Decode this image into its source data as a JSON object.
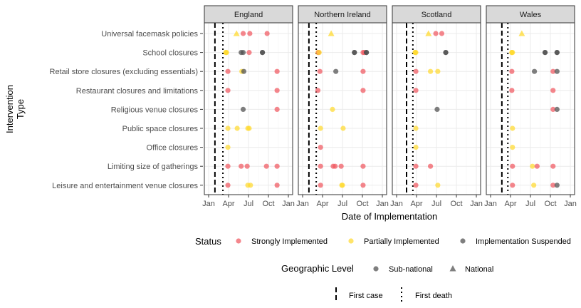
{
  "chart_data": {
    "type": "scatter",
    "xlabel": "Date of Implementation",
    "ylabel_lines": [
      "Intervention",
      "Type"
    ],
    "x_ticks": [
      "Jan",
      "Apr",
      "Jul",
      "Oct",
      "Jan"
    ],
    "xlim_months": [
      0,
      12
    ],
    "grid": true,
    "categories": [
      "Universal facemask policies",
      "School closures",
      "Retail store closures (excluding essentials)",
      "Restaurant closures and limitations",
      "Religious venue closures",
      "Public space closures",
      "Office closures",
      "Limiting size of gatherings",
      "Leisure and entertainment venue closures"
    ],
    "status_colors": {
      "Strongly Implemented": "#F0585F",
      "Partially Implemented": "#FFD92F",
      "Implementation Suspended": "#4D4D4D"
    },
    "legend": {
      "status_title": "Status",
      "status_items": [
        "Strongly Implemented",
        "Partially Implemented",
        "Implementation Suspended"
      ],
      "geo_title": "Geographic Level",
      "geo_items": [
        {
          "label": "Sub-national",
          "shape": "circle"
        },
        {
          "label": "National",
          "shape": "triangle"
        }
      ],
      "line_items": [
        {
          "label": "First case",
          "style": "dashed"
        },
        {
          "label": "First death",
          "style": "dotted"
        }
      ],
      "position": "bottom"
    },
    "panels": [
      {
        "name": "England",
        "first_case": 0.95,
        "first_death": 2.15,
        "points": [
          {
            "cat": 0,
            "x": 4.2,
            "status": "Partially Implemented",
            "geo": "National"
          },
          {
            "cat": 0,
            "x": 5.2,
            "status": "Strongly Implemented",
            "geo": "Sub-national"
          },
          {
            "cat": 0,
            "x": 6.2,
            "status": "Strongly Implemented",
            "geo": "Sub-national"
          },
          {
            "cat": 0,
            "x": 8.8,
            "status": "Strongly Implemented",
            "geo": "Sub-national"
          },
          {
            "cat": 1,
            "x": 2.6,
            "status": "Partially Implemented",
            "geo": "Sub-national"
          },
          {
            "cat": 1,
            "x": 2.6,
            "status": "Partially Implemented",
            "geo": "Sub-national"
          },
          {
            "cat": 1,
            "x": 2.7,
            "status": "Partially Implemented",
            "geo": "Sub-national"
          },
          {
            "cat": 1,
            "x": 4.9,
            "status": "Implementation Suspended",
            "geo": "Sub-national"
          },
          {
            "cat": 1,
            "x": 5.2,
            "status": "Implementation Suspended",
            "geo": "Sub-national"
          },
          {
            "cat": 1,
            "x": 6.1,
            "status": "Strongly Implemented",
            "geo": "Sub-national"
          },
          {
            "cat": 1,
            "x": 8.1,
            "status": "Implementation Suspended",
            "geo": "Sub-national"
          },
          {
            "cat": 1,
            "x": 8.1,
            "status": "Implementation Suspended",
            "geo": "Sub-national"
          },
          {
            "cat": 2,
            "x": 2.9,
            "status": "Strongly Implemented",
            "geo": "Sub-national"
          },
          {
            "cat": 2,
            "x": 5.0,
            "status": "Partially Implemented",
            "geo": "Sub-national"
          },
          {
            "cat": 2,
            "x": 5.3,
            "status": "Implementation Suspended",
            "geo": "Sub-national"
          },
          {
            "cat": 2,
            "x": 10.3,
            "status": "Strongly Implemented",
            "geo": "Sub-national"
          },
          {
            "cat": 3,
            "x": 2.9,
            "status": "Strongly Implemented",
            "geo": "Sub-national"
          },
          {
            "cat": 3,
            "x": 10.3,
            "status": "Strongly Implemented",
            "geo": "Sub-national"
          },
          {
            "cat": 4,
            "x": 5.2,
            "status": "Implementation Suspended",
            "geo": "Sub-national"
          },
          {
            "cat": 4,
            "x": 10.3,
            "status": "Strongly Implemented",
            "geo": "Sub-national"
          },
          {
            "cat": 5,
            "x": 2.9,
            "status": "Partially Implemented",
            "geo": "Sub-national"
          },
          {
            "cat": 5,
            "x": 4.3,
            "status": "Partially Implemented",
            "geo": "Sub-national"
          },
          {
            "cat": 5,
            "x": 5.9,
            "status": "Partially Implemented",
            "geo": "Sub-national"
          },
          {
            "cat": 5,
            "x": 6.1,
            "status": "Partially Implemented",
            "geo": "Sub-national"
          },
          {
            "cat": 6,
            "x": 2.9,
            "status": "Partially Implemented",
            "geo": "Sub-national"
          },
          {
            "cat": 7,
            "x": 2.9,
            "status": "Strongly Implemented",
            "geo": "Sub-national"
          },
          {
            "cat": 7,
            "x": 4.9,
            "status": "Strongly Implemented",
            "geo": "Sub-national"
          },
          {
            "cat": 7,
            "x": 5.8,
            "status": "Strongly Implemented",
            "geo": "Sub-national"
          },
          {
            "cat": 7,
            "x": 8.7,
            "status": "Strongly Implemented",
            "geo": "Sub-national"
          },
          {
            "cat": 7,
            "x": 10.3,
            "status": "Strongly Implemented",
            "geo": "Sub-national"
          },
          {
            "cat": 8,
            "x": 2.9,
            "status": "Strongly Implemented",
            "geo": "Sub-national"
          },
          {
            "cat": 8,
            "x": 5.9,
            "status": "Partially Implemented",
            "geo": "Sub-national"
          },
          {
            "cat": 8,
            "x": 6.3,
            "status": "Partially Implemented",
            "geo": "Sub-national"
          },
          {
            "cat": 8,
            "x": 10.3,
            "status": "Strongly Implemented",
            "geo": "Sub-national"
          }
        ]
      },
      {
        "name": "Northern Ireland",
        "first_case": 0.95,
        "first_death": 2.05,
        "points": [
          {
            "cat": 0,
            "x": 4.3,
            "status": "Partially Implemented",
            "geo": "National"
          },
          {
            "cat": 1,
            "x": 2.3,
            "status": "Partially Implemented",
            "geo": "Sub-national"
          },
          {
            "cat": 1,
            "x": 2.4,
            "status": "Strongly Implemented",
            "geo": "Sub-national"
          },
          {
            "cat": 1,
            "x": 2.5,
            "status": "Partially Implemented",
            "geo": "Sub-national"
          },
          {
            "cat": 1,
            "x": 7.8,
            "status": "Implementation Suspended",
            "geo": "Sub-national"
          },
          {
            "cat": 1,
            "x": 7.8,
            "status": "Implementation Suspended",
            "geo": "Sub-national"
          },
          {
            "cat": 1,
            "x": 9.1,
            "status": "Strongly Implemented",
            "geo": "Sub-national"
          },
          {
            "cat": 1,
            "x": 9.3,
            "status": "Strongly Implemented",
            "geo": "Sub-national"
          },
          {
            "cat": 1,
            "x": 9.6,
            "status": "Implementation Suspended",
            "geo": "Sub-national"
          },
          {
            "cat": 1,
            "x": 9.6,
            "status": "Implementation Suspended",
            "geo": "Sub-national"
          },
          {
            "cat": 2,
            "x": 2.6,
            "status": "Strongly Implemented",
            "geo": "Sub-national"
          },
          {
            "cat": 2,
            "x": 5.0,
            "status": "Implementation Suspended",
            "geo": "Sub-national"
          },
          {
            "cat": 2,
            "x": 9.1,
            "status": "Strongly Implemented",
            "geo": "Sub-national"
          },
          {
            "cat": 3,
            "x": 2.3,
            "status": "Strongly Implemented",
            "geo": "Sub-national"
          },
          {
            "cat": 3,
            "x": 9.1,
            "status": "Strongly Implemented",
            "geo": "Sub-national"
          },
          {
            "cat": 4,
            "x": 4.5,
            "status": "Partially Implemented",
            "geo": "Sub-national"
          },
          {
            "cat": 5,
            "x": 2.7,
            "status": "Partially Implemented",
            "geo": "Sub-national"
          },
          {
            "cat": 5,
            "x": 6.1,
            "status": "Partially Implemented",
            "geo": "Sub-national"
          },
          {
            "cat": 6,
            "x": 2.7,
            "status": "Strongly Implemented",
            "geo": "Sub-national"
          },
          {
            "cat": 7,
            "x": 2.7,
            "status": "Strongly Implemented",
            "geo": "Sub-national"
          },
          {
            "cat": 7,
            "x": 4.6,
            "status": "Strongly Implemented",
            "geo": "Sub-national"
          },
          {
            "cat": 7,
            "x": 4.9,
            "status": "Strongly Implemented",
            "geo": "Sub-national"
          },
          {
            "cat": 7,
            "x": 5.8,
            "status": "Strongly Implemented",
            "geo": "Sub-national"
          },
          {
            "cat": 7,
            "x": 9.1,
            "status": "Strongly Implemented",
            "geo": "Sub-national"
          },
          {
            "cat": 8,
            "x": 2.7,
            "status": "Strongly Implemented",
            "geo": "Sub-national"
          },
          {
            "cat": 8,
            "x": 5.9,
            "status": "Partially Implemented",
            "geo": "Sub-national"
          },
          {
            "cat": 8,
            "x": 6.0,
            "status": "Partially Implemented",
            "geo": "Sub-national"
          },
          {
            "cat": 8,
            "x": 9.1,
            "status": "Strongly Implemented",
            "geo": "Sub-national"
          }
        ]
      },
      {
        "name": "Scotland",
        "first_case": 1.5,
        "first_death": 2.45,
        "points": [
          {
            "cat": 0,
            "x": 4.8,
            "status": "Partially Implemented",
            "geo": "National"
          },
          {
            "cat": 0,
            "x": 5.9,
            "status": "Strongly Implemented",
            "geo": "Sub-national"
          },
          {
            "cat": 0,
            "x": 6.8,
            "status": "Strongly Implemented",
            "geo": "Sub-national"
          },
          {
            "cat": 1,
            "x": 2.8,
            "status": "Partially Implemented",
            "geo": "Sub-national"
          },
          {
            "cat": 1,
            "x": 2.8,
            "status": "Partially Implemented",
            "geo": "Sub-national"
          },
          {
            "cat": 1,
            "x": 2.9,
            "status": "Partially Implemented",
            "geo": "Sub-national"
          },
          {
            "cat": 1,
            "x": 7.4,
            "status": "Implementation Suspended",
            "geo": "Sub-national"
          },
          {
            "cat": 1,
            "x": 7.4,
            "status": "Implementation Suspended",
            "geo": "Sub-national"
          },
          {
            "cat": 2,
            "x": 2.9,
            "status": "Strongly Implemented",
            "geo": "Sub-national"
          },
          {
            "cat": 2,
            "x": 5.1,
            "status": "Partially Implemented",
            "geo": "Sub-national"
          },
          {
            "cat": 2,
            "x": 6.2,
            "status": "Partially Implemented",
            "geo": "Sub-national"
          },
          {
            "cat": 3,
            "x": 2.9,
            "status": "Strongly Implemented",
            "geo": "Sub-national"
          },
          {
            "cat": 4,
            "x": 6.1,
            "status": "Implementation Suspended",
            "geo": "Sub-national"
          },
          {
            "cat": 5,
            "x": 2.9,
            "status": "Partially Implemented",
            "geo": "Sub-national"
          },
          {
            "cat": 6,
            "x": 2.9,
            "status": "Partially Implemented",
            "geo": "Sub-national"
          },
          {
            "cat": 7,
            "x": 2.9,
            "status": "Strongly Implemented",
            "geo": "Sub-national"
          },
          {
            "cat": 7,
            "x": 5.1,
            "status": "Strongly Implemented",
            "geo": "Sub-national"
          },
          {
            "cat": 8,
            "x": 2.9,
            "status": "Strongly Implemented",
            "geo": "Sub-national"
          },
          {
            "cat": 8,
            "x": 6.2,
            "status": "Partially Implemented",
            "geo": "Sub-national"
          }
        ]
      },
      {
        "name": "Wales",
        "first_case": 1.7,
        "first_death": 2.6,
        "points": [
          {
            "cat": 0,
            "x": 4.7,
            "status": "Partially Implemented",
            "geo": "National"
          },
          {
            "cat": 1,
            "x": 3.2,
            "status": "Partially Implemented",
            "geo": "Sub-national"
          },
          {
            "cat": 1,
            "x": 3.2,
            "status": "Partially Implemented",
            "geo": "Sub-national"
          },
          {
            "cat": 1,
            "x": 3.3,
            "status": "Partially Implemented",
            "geo": "Sub-national"
          },
          {
            "cat": 1,
            "x": 8.2,
            "status": "Implementation Suspended",
            "geo": "Sub-national"
          },
          {
            "cat": 1,
            "x": 8.2,
            "status": "Implementation Suspended",
            "geo": "Sub-national"
          },
          {
            "cat": 1,
            "x": 10.0,
            "status": "Implementation Suspended",
            "geo": "Sub-national"
          },
          {
            "cat": 1,
            "x": 10.0,
            "status": "Implementation Suspended",
            "geo": "Sub-national"
          },
          {
            "cat": 2,
            "x": 3.2,
            "status": "Strongly Implemented",
            "geo": "Sub-national"
          },
          {
            "cat": 2,
            "x": 6.6,
            "status": "Implementation Suspended",
            "geo": "Sub-national"
          },
          {
            "cat": 2,
            "x": 9.4,
            "status": "Strongly Implemented",
            "geo": "Sub-national"
          },
          {
            "cat": 2,
            "x": 10.0,
            "status": "Implementation Suspended",
            "geo": "Sub-national"
          },
          {
            "cat": 3,
            "x": 3.2,
            "status": "Strongly Implemented",
            "geo": "Sub-national"
          },
          {
            "cat": 3,
            "x": 9.4,
            "status": "Strongly Implemented",
            "geo": "Sub-national"
          },
          {
            "cat": 4,
            "x": 9.4,
            "status": "Strongly Implemented",
            "geo": "Sub-national"
          },
          {
            "cat": 4,
            "x": 10.0,
            "status": "Implementation Suspended",
            "geo": "Sub-national"
          },
          {
            "cat": 5,
            "x": 3.3,
            "status": "Partially Implemented",
            "geo": "Sub-national"
          },
          {
            "cat": 6,
            "x": 3.3,
            "status": "Partially Implemented",
            "geo": "Sub-national"
          },
          {
            "cat": 7,
            "x": 3.3,
            "status": "Strongly Implemented",
            "geo": "Sub-national"
          },
          {
            "cat": 7,
            "x": 6.3,
            "status": "Partially Implemented",
            "geo": "Sub-national"
          },
          {
            "cat": 7,
            "x": 7.0,
            "status": "Strongly Implemented",
            "geo": "Sub-national"
          },
          {
            "cat": 7,
            "x": 9.4,
            "status": "Strongly Implemented",
            "geo": "Sub-national"
          },
          {
            "cat": 8,
            "x": 3.3,
            "status": "Strongly Implemented",
            "geo": "Sub-national"
          },
          {
            "cat": 8,
            "x": 6.5,
            "status": "Partially Implemented",
            "geo": "Sub-national"
          },
          {
            "cat": 8,
            "x": 9.4,
            "status": "Strongly Implemented",
            "geo": "Sub-national"
          },
          {
            "cat": 8,
            "x": 10.0,
            "status": "Implementation Suspended",
            "geo": "Sub-national"
          }
        ]
      }
    ]
  }
}
